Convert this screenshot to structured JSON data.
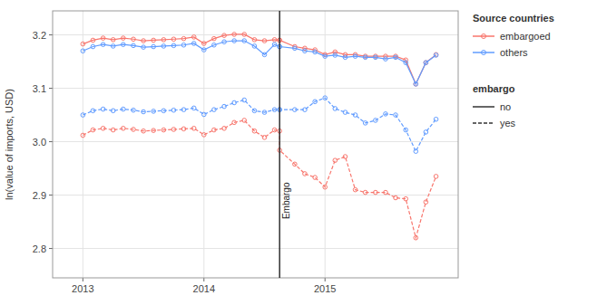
{
  "chart_data": {
    "type": "line",
    "y_label": "ln(value of imports, USD)",
    "xlim": [
      2012.75,
      2016.1
    ],
    "xticks": [
      2013,
      2014,
      2015
    ],
    "ylim": [
      2.745,
      3.245
    ],
    "yticks": [
      2.8,
      2.9,
      {
        "value": 3.0,
        "label": "3.0"
      },
      3.1,
      3.2
    ],
    "grid": true,
    "series": [
      {
        "color": "#f8766d",
        "line_style": "solid",
        "marker": "circle",
        "x": [
          2013.0,
          2013.083,
          2013.167,
          2013.25,
          2013.333,
          2013.417,
          2013.5,
          2013.583,
          2013.667,
          2013.75,
          2013.833,
          2013.917,
          2014.0,
          2014.083,
          2014.167,
          2014.25,
          2014.333,
          2014.417,
          2014.5,
          2014.583,
          2014.625,
          2014.625,
          2014.75,
          2014.833,
          2014.917,
          2015.0,
          2015.083,
          2015.167,
          2015.25,
          2015.333,
          2015.417,
          2015.5,
          2015.583,
          2015.667,
          2015.75,
          2015.833,
          2015.917
        ],
        "values": [
          3.183,
          3.19,
          3.194,
          3.191,
          3.194,
          3.192,
          3.189,
          3.19,
          3.191,
          3.192,
          3.193,
          3.196,
          3.184,
          3.193,
          3.199,
          3.201,
          3.201,
          3.191,
          3.189,
          3.191,
          3.19,
          3.19,
          3.178,
          3.175,
          3.172,
          3.163,
          3.168,
          3.163,
          3.163,
          3.16,
          3.16,
          3.16,
          3.16,
          3.153,
          3.108,
          3.148,
          3.163
        ]
      },
      {
        "color": "#619cff",
        "line_style": "solid",
        "marker": "circle",
        "x": [
          2013.0,
          2013.083,
          2013.167,
          2013.25,
          2013.333,
          2013.417,
          2013.5,
          2013.583,
          2013.667,
          2013.75,
          2013.833,
          2013.917,
          2014.0,
          2014.083,
          2014.167,
          2014.25,
          2014.333,
          2014.417,
          2014.5,
          2014.583,
          2014.625,
          2014.625,
          2014.75,
          2014.833,
          2014.917,
          2015.0,
          2015.083,
          2015.167,
          2015.25,
          2015.333,
          2015.417,
          2015.5,
          2015.583,
          2015.667,
          2015.75,
          2015.833,
          2015.917
        ],
        "values": [
          3.17,
          3.178,
          3.182,
          3.179,
          3.182,
          3.18,
          3.177,
          3.178,
          3.179,
          3.18,
          3.181,
          3.184,
          3.172,
          3.181,
          3.187,
          3.189,
          3.189,
          3.179,
          3.163,
          3.182,
          3.178,
          3.178,
          3.175,
          3.17,
          3.168,
          3.16,
          3.162,
          3.158,
          3.16,
          3.158,
          3.158,
          3.155,
          3.158,
          3.148,
          3.108,
          3.148,
          3.162
        ]
      },
      {
        "color": "#619cff",
        "line_style": "dashed",
        "marker": "circle",
        "x": [
          2013.0,
          2013.083,
          2013.167,
          2013.25,
          2013.333,
          2013.417,
          2013.5,
          2013.583,
          2013.667,
          2013.75,
          2013.833,
          2013.917,
          2014.0,
          2014.083,
          2014.167,
          2014.25,
          2014.333,
          2014.417,
          2014.5,
          2014.583,
          2014.625,
          2014.625,
          2014.75,
          2014.833,
          2014.917,
          2015.0,
          2015.083,
          2015.167,
          2015.25,
          2015.333,
          2015.417,
          2015.5,
          2015.583,
          2015.667,
          2015.75,
          2015.833,
          2015.917
        ],
        "values": [
          3.05,
          3.058,
          3.061,
          3.058,
          3.061,
          3.059,
          3.056,
          3.057,
          3.058,
          3.059,
          3.06,
          3.063,
          3.051,
          3.06,
          3.066,
          3.073,
          3.078,
          3.058,
          3.055,
          3.06,
          3.06,
          3.06,
          3.06,
          3.06,
          3.075,
          3.082,
          3.062,
          3.055,
          3.05,
          3.035,
          3.04,
          3.052,
          3.05,
          3.022,
          2.982,
          3.018,
          3.042
        ]
      },
      {
        "color": "#f8766d",
        "line_style": "dashed",
        "marker": "circle",
        "x": [
          2013.0,
          2013.083,
          2013.167,
          2013.25,
          2013.333,
          2013.417,
          2013.5,
          2013.583,
          2013.667,
          2013.75,
          2013.833,
          2013.917,
          2014.0,
          2014.083,
          2014.167,
          2014.25,
          2014.333,
          2014.417,
          2014.5,
          2014.583,
          2014.625,
          2014.625,
          2014.75,
          2014.833,
          2014.917,
          2015.0,
          2015.083,
          2015.167,
          2015.25,
          2015.333,
          2015.417,
          2015.5,
          2015.583,
          2015.667,
          2015.75,
          2015.833,
          2015.917
        ],
        "values": [
          3.012,
          3.022,
          3.025,
          3.022,
          3.025,
          3.023,
          3.02,
          3.021,
          3.022,
          3.023,
          3.024,
          3.025,
          3.013,
          3.022,
          3.025,
          3.036,
          3.04,
          3.02,
          3.008,
          3.022,
          3.02,
          2.984,
          2.958,
          2.94,
          2.933,
          2.915,
          2.965,
          2.972,
          2.91,
          2.905,
          2.905,
          2.905,
          2.895,
          2.893,
          2.82,
          2.887,
          2.935
        ]
      }
    ],
    "annotations": [
      {
        "text": "Embargo",
        "x": 2014.625,
        "y": 2.855,
        "color": "#222222"
      }
    ],
    "legend_groups": [
      {
        "title": "Source countries",
        "entries": [
          {
            "label": "embargoed",
            "color": "#f8766d",
            "line_style": "solid",
            "marker": "circle"
          },
          {
            "label": "others",
            "color": "#619cff",
            "line_style": "solid",
            "marker": "circle"
          }
        ]
      },
      {
        "title": "embargo",
        "entries": [
          {
            "label": "no",
            "color": "#333333",
            "line_style": "solid"
          },
          {
            "label": "yes",
            "color": "#333333",
            "line_style": "dashed"
          }
        ]
      }
    ]
  }
}
